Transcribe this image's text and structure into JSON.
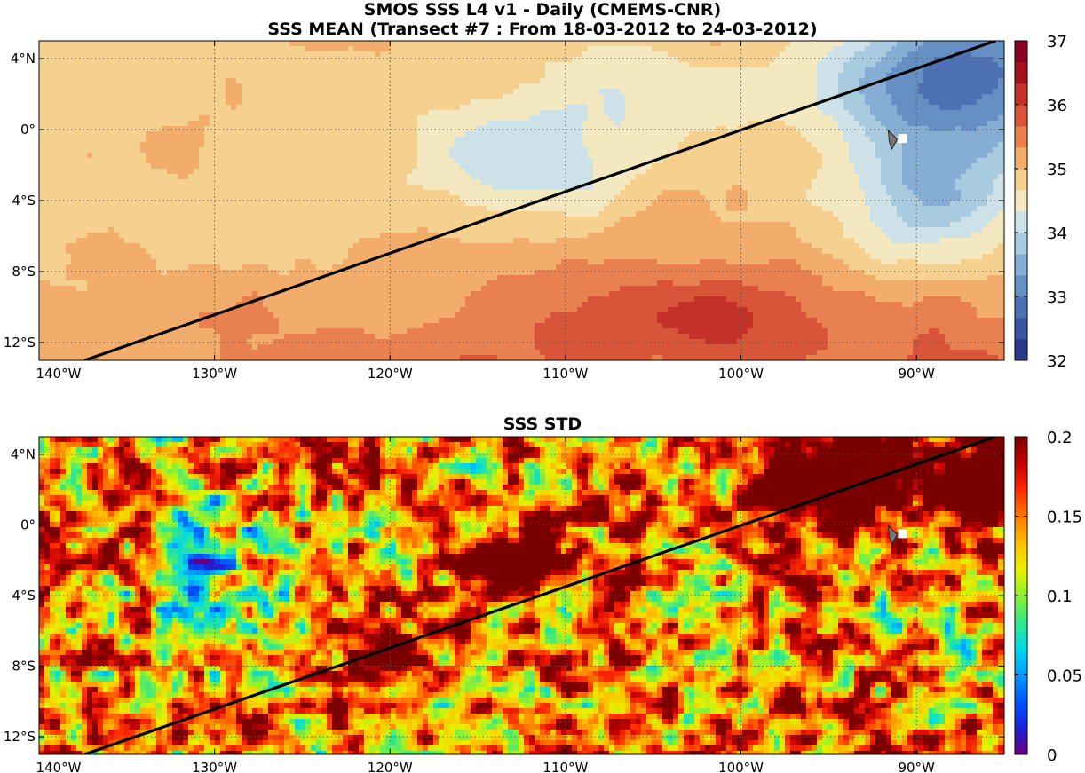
{
  "header": {
    "title_line1": "SMOS SSS L4 v1 - Daily (CMEMS-CNR)",
    "title_line2": "SSS MEAN (Transect #7 : From 18-03-2012 to 24-03-2012)"
  },
  "chart_data": [
    {
      "type": "heatmap",
      "title": "SSS MEAN (Transect #7 : From 18-03-2012 to 24-03-2012)",
      "xlabel": "",
      "ylabel": "",
      "x_ticks": [
        {
          "lon": -140,
          "label": "140°W"
        },
        {
          "lon": -130,
          "label": "130°W"
        },
        {
          "lon": -120,
          "label": "120°W"
        },
        {
          "lon": -110,
          "label": "110°W"
        },
        {
          "lon": -100,
          "label": "100°W"
        },
        {
          "lon": -90,
          "label": "90°W"
        }
      ],
      "y_ticks": [
        {
          "lat": 4,
          "label": "4°N"
        },
        {
          "lat": 0,
          "label": "0°"
        },
        {
          "lat": -4,
          "label": "4°S"
        },
        {
          "lat": -8,
          "label": "8°S"
        },
        {
          "lat": -12,
          "label": "12°S"
        }
      ],
      "xlim": [
        -140,
        -85
      ],
      "ylim": [
        -13,
        5
      ],
      "grid": true,
      "colorbar": {
        "range": [
          32,
          37
        ],
        "ticks": [
          32,
          33,
          34,
          35,
          36,
          37
        ],
        "colors": [
          "#2b3a86",
          "#3c55a1",
          "#4e71b4",
          "#6690c4",
          "#86add4",
          "#a9cbe0",
          "#cde2e8",
          "#f4e8c0",
          "#f6d08f",
          "#f2ad6d",
          "#e8814f",
          "#d8553a",
          "#c33128",
          "#a4111d",
          "#8b0021"
        ]
      },
      "transect": {
        "start": {
          "lon": -137.4,
          "lat": -13.0
        },
        "end": {
          "lon": -85.5,
          "lat": 5.0
        },
        "color": "#000000"
      },
      "marker": {
        "lon": -91.3,
        "lat": -0.5,
        "color": "#777777"
      }
    },
    {
      "type": "heatmap",
      "title": "SSS STD",
      "xlabel": "",
      "ylabel": "",
      "x_ticks": [
        {
          "lon": -140,
          "label": "140°W"
        },
        {
          "lon": -130,
          "label": "130°W"
        },
        {
          "lon": -120,
          "label": "120°W"
        },
        {
          "lon": -110,
          "label": "110°W"
        },
        {
          "lon": -100,
          "label": "100°W"
        },
        {
          "lon": -90,
          "label": "90°W"
        }
      ],
      "y_ticks": [
        {
          "lat": 4,
          "label": "4°N"
        },
        {
          "lat": 0,
          "label": "0°"
        },
        {
          "lat": -4,
          "label": "4°S"
        },
        {
          "lat": -8,
          "label": "8°S"
        },
        {
          "lat": -12,
          "label": "12°S"
        }
      ],
      "xlim": [
        -140,
        -85
      ],
      "ylim": [
        -13,
        5
      ],
      "grid": true,
      "colorbar": {
        "range": [
          0,
          0.2
        ],
        "ticks": [
          0,
          0.05,
          0.1,
          0.15,
          0.2
        ],
        "tick_labels": [
          "0",
          "0.05",
          "0.1",
          "0.15",
          "0.2"
        ],
        "colors": [
          "#6a007a",
          "#1e1fd8",
          "#0055ff",
          "#0099ff",
          "#00d9e8",
          "#33e88a",
          "#8cf033",
          "#e8f000",
          "#ffc000",
          "#ff7a00",
          "#ff2a00",
          "#c40000",
          "#7a0000"
        ]
      },
      "transect": {
        "start": {
          "lon": -137.4,
          "lat": -13.0
        },
        "end": {
          "lon": -85.5,
          "lat": 5.0
        },
        "color": "#000000"
      },
      "marker": {
        "lon": -91.3,
        "lat": -0.5,
        "color": "#777777"
      }
    }
  ]
}
